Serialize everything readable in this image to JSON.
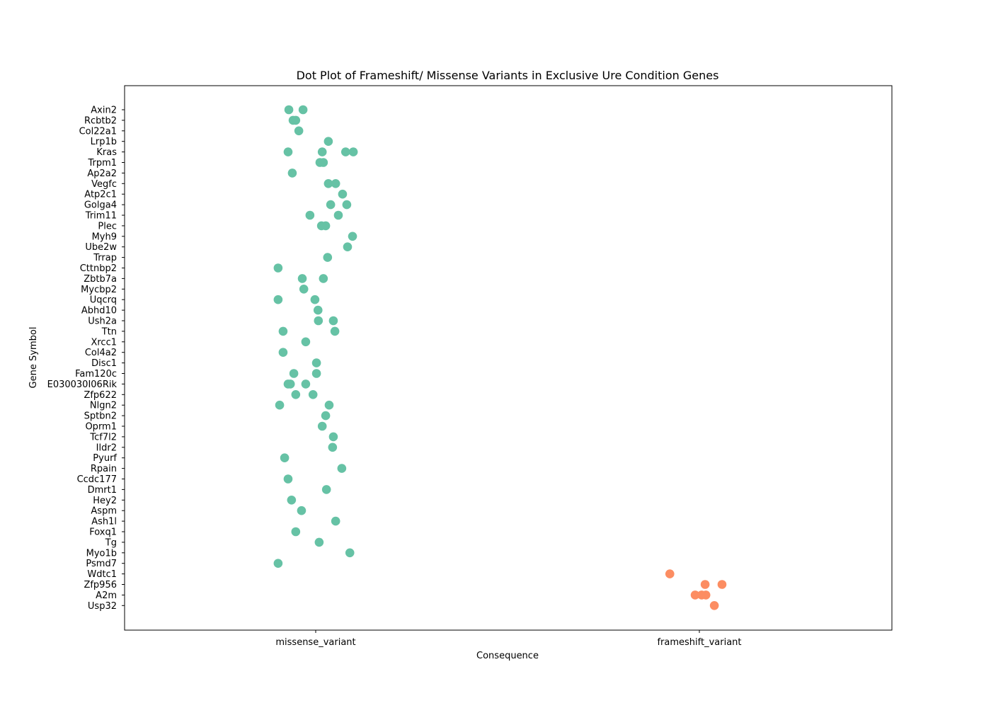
{
  "chart_data": {
    "type": "scatter",
    "title": "Dot Plot of Frameshift/ Missense Variants in Exclusive Ure Condition Genes",
    "xlabel": "Consequence",
    "ylabel": "Gene Symbol",
    "categories": [
      "missense_variant",
      "frameshift_variant"
    ],
    "genes": [
      "Axin2",
      "Rcbtb2",
      "Col22a1",
      "Lrp1b",
      "Kras",
      "Trpm1",
      "Ap2a2",
      "Vegfc",
      "Atp2c1",
      "Golga4",
      "Trim11",
      "Plec",
      "Myh9",
      "Ube2w",
      "Trrap",
      "Cttnbp2",
      "Zbtb7a",
      "Mycbp2",
      "Uqcrq",
      "Abhd10",
      "Ush2a",
      "Ttn",
      "Xrcc1",
      "Col4a2",
      "Disc1",
      "Fam120c",
      "E030030I06Rik",
      "Zfp622",
      "Nlgn2",
      "Sptbn2",
      "Oprm1",
      "Tcf7l2",
      "Ildr2",
      "Pyurf",
      "Rpain",
      "Ccdc177",
      "Dmrt1",
      "Hey2",
      "Aspm",
      "Ash1l",
      "Foxq1",
      "Tg",
      "Myo1b",
      "Psmd7",
      "Wdtc1",
      "Zfp956",
      "A2m",
      "Usp32"
    ],
    "xlim": [
      -0.5,
      1.5
    ],
    "grid": false,
    "legend": "none",
    "series": [
      {
        "category": "missense_variant",
        "color": "#66c2a5",
        "points": [
          {
            "gene": "Axin2",
            "x": -0.07
          },
          {
            "gene": "Axin2",
            "x": -0.033
          },
          {
            "gene": "Rcbtb2",
            "x": -0.059
          },
          {
            "gene": "Rcbtb2",
            "x": -0.052
          },
          {
            "gene": "Col22a1",
            "x": -0.044
          },
          {
            "gene": "Lrp1b",
            "x": 0.033
          },
          {
            "gene": "Kras",
            "x": -0.072
          },
          {
            "gene": "Kras",
            "x": 0.017
          },
          {
            "gene": "Kras",
            "x": 0.078
          },
          {
            "gene": "Kras",
            "x": 0.098
          },
          {
            "gene": "Trpm1",
            "x": 0.011
          },
          {
            "gene": "Trpm1",
            "x": 0.02
          },
          {
            "gene": "Ap2a2",
            "x": -0.061
          },
          {
            "gene": "Vegfc",
            "x": 0.033
          },
          {
            "gene": "Vegfc",
            "x": 0.052
          },
          {
            "gene": "Atp2c1",
            "x": 0.07
          },
          {
            "gene": "Golga4",
            "x": 0.039
          },
          {
            "gene": "Golga4",
            "x": 0.081
          },
          {
            "gene": "Trim11",
            "x": -0.015
          },
          {
            "gene": "Trim11",
            "x": 0.059
          },
          {
            "gene": "Plec",
            "x": 0.015
          },
          {
            "gene": "Plec",
            "x": 0.026
          },
          {
            "gene": "Myh9",
            "x": 0.096
          },
          {
            "gene": "Ube2w",
            "x": 0.083
          },
          {
            "gene": "Trrap",
            "x": 0.031
          },
          {
            "gene": "Cttnbp2",
            "x": -0.098
          },
          {
            "gene": "Zbtb7a",
            "x": -0.035
          },
          {
            "gene": "Zbtb7a",
            "x": 0.02
          },
          {
            "gene": "Mycbp2",
            "x": -0.031
          },
          {
            "gene": "Uqcrq",
            "x": -0.098
          },
          {
            "gene": "Uqcrq",
            "x": -0.002
          },
          {
            "gene": "Abhd10",
            "x": 0.006
          },
          {
            "gene": "Ush2a",
            "x": 0.007
          },
          {
            "gene": "Ush2a",
            "x": 0.046
          },
          {
            "gene": "Ttn",
            "x": -0.085
          },
          {
            "gene": "Ttn",
            "x": 0.05
          },
          {
            "gene": "Xrcc1",
            "x": -0.026
          },
          {
            "gene": "Col4a2",
            "x": -0.085
          },
          {
            "gene": "Disc1",
            "x": 0.002
          },
          {
            "gene": "Fam120c",
            "x": -0.057
          },
          {
            "gene": "Fam120c",
            "x": 0.002
          },
          {
            "gene": "E030030I06Rik",
            "x": -0.072
          },
          {
            "gene": "E030030I06Rik",
            "x": -0.066
          },
          {
            "gene": "E030030I06Rik",
            "x": -0.026
          },
          {
            "gene": "Zfp622",
            "x": -0.052
          },
          {
            "gene": "Zfp622",
            "x": -0.007
          },
          {
            "gene": "Nlgn2",
            "x": -0.094
          },
          {
            "gene": "Nlgn2",
            "x": 0.035
          },
          {
            "gene": "Sptbn2",
            "x": 0.026
          },
          {
            "gene": "Oprm1",
            "x": 0.017
          },
          {
            "gene": "Tcf7l2",
            "x": 0.046
          },
          {
            "gene": "Ildr2",
            "x": 0.044
          },
          {
            "gene": "Pyurf",
            "x": -0.081
          },
          {
            "gene": "Rpain",
            "x": 0.068
          },
          {
            "gene": "Ccdc177",
            "x": -0.072
          },
          {
            "gene": "Dmrt1",
            "x": 0.028
          },
          {
            "gene": "Hey2",
            "x": -0.063
          },
          {
            "gene": "Aspm",
            "x": -0.037
          },
          {
            "gene": "Ash1l",
            "x": 0.052
          },
          {
            "gene": "Foxq1",
            "x": -0.052
          },
          {
            "gene": "Tg",
            "x": 0.009
          },
          {
            "gene": "Myo1b",
            "x": 0.089
          },
          {
            "gene": "Psmd7",
            "x": -0.098
          }
        ]
      },
      {
        "category": "frameshift_variant",
        "color": "#fc8d62",
        "points": [
          {
            "gene": "Wdtc1",
            "x": 0.923
          },
          {
            "gene": "Zfp956",
            "x": 1.015
          },
          {
            "gene": "Zfp956",
            "x": 1.059
          },
          {
            "gene": "A2m",
            "x": 0.989
          },
          {
            "gene": "A2m",
            "x": 1.006
          },
          {
            "gene": "A2m",
            "x": 1.017
          },
          {
            "gene": "Usp32",
            "x": 1.039
          }
        ]
      }
    ]
  }
}
